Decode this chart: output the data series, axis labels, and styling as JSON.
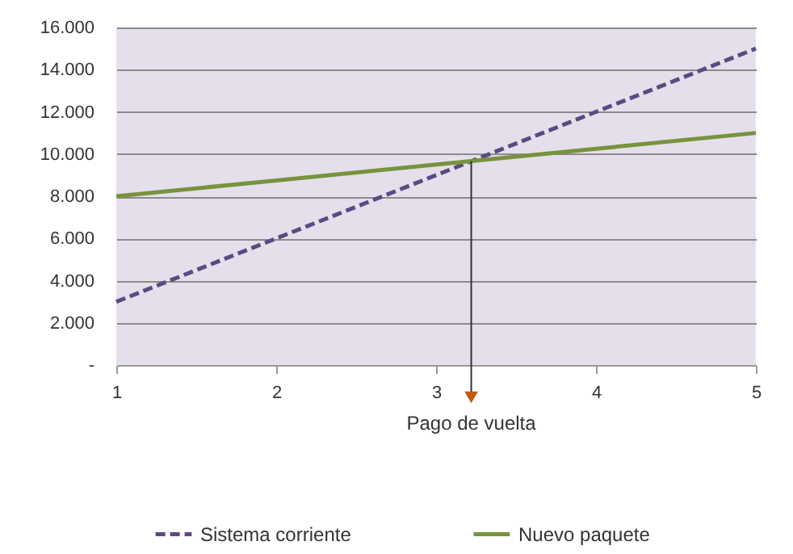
{
  "chart_data": {
    "type": "line",
    "x": [
      1,
      2,
      3,
      4,
      5
    ],
    "series": [
      {
        "name": "Sistema corriente",
        "color": "#5b4a82",
        "line_style": "dashed",
        "values": [
          3000,
          6000,
          9000,
          12000,
          15000
        ]
      },
      {
        "name": "Nuevo paquete",
        "color": "#77933c",
        "line_style": "solid",
        "values": [
          8000,
          8750,
          9500,
          10250,
          11000
        ]
      }
    ],
    "xlim": [
      1,
      5
    ],
    "xticks": [
      1,
      2,
      3,
      4,
      5
    ],
    "ylim": [
      0,
      16000
    ],
    "yticks": [
      {
        "value": 0,
        "label": "-"
      },
      {
        "value": 2000,
        "label": "2.000"
      },
      {
        "value": 4000,
        "label": "4.000"
      },
      {
        "value": 6000,
        "label": "6.000"
      },
      {
        "value": 8000,
        "label": "8.000"
      },
      {
        "value": 10000,
        "label": "10.000"
      },
      {
        "value": 12000,
        "label": "12.000"
      },
      {
        "value": 14000,
        "label": "14.000"
      },
      {
        "value": 16000,
        "label": "16.000"
      }
    ],
    "grid": "y",
    "legend": "bottom",
    "marker": "none",
    "annotations": [
      {
        "text": "Pago de vuelta",
        "x": 3.22,
        "y": 9667
      }
    ]
  }
}
